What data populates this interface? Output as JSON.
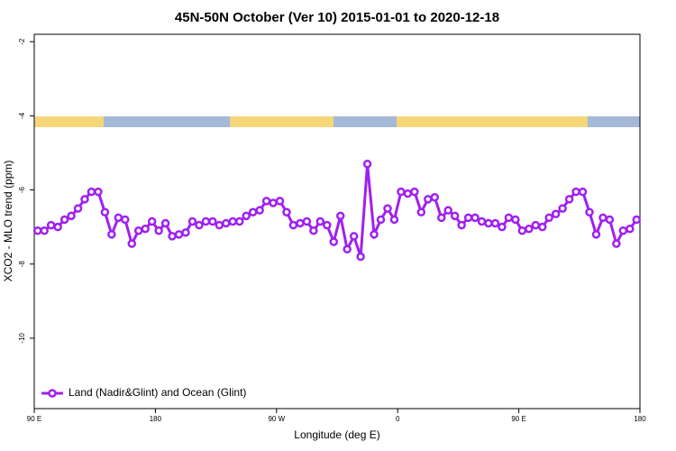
{
  "chart_data": {
    "type": "line",
    "title": "45N-50N October (Ver 10)   2015-01-01 to 2020-12-18",
    "x_label": "Longitude (deg E)",
    "y_label": "XCO2 - MLO trend (ppm)",
    "xlim": [
      90,
      540
    ],
    "xticks": [
      {
        "value": 90,
        "label": "90 E"
      },
      180,
      {
        "value": 270,
        "label": "90 W"
      },
      {
        "value": 360,
        "label": "0"
      },
      {
        "value": 450,
        "label": "90 E"
      },
      {
        "value": 540,
        "label": "180"
      }
    ],
    "ylim": [
      -11.9,
      -1.8
    ],
    "yticks": [
      -2,
      -4,
      -6,
      -8,
      -10
    ],
    "legend": "bottom-left",
    "x": [
      92.5,
      97.5,
      102.5,
      107.5,
      112.5,
      117.5,
      122.5,
      127.5,
      132.5,
      137.5,
      142.5,
      147.5,
      152.5,
      157.5,
      162.5,
      167.5,
      172.5,
      177.5,
      182.5,
      187.5,
      192.5,
      197.5,
      202.5,
      207.5,
      212.5,
      217.5,
      222.5,
      227.5,
      232.5,
      237.5,
      242.5,
      247.5,
      252.5,
      257.5,
      262.5,
      267.5,
      272.5,
      277.5,
      282.5,
      287.5,
      292.5,
      297.5,
      302.5,
      307.5,
      312.5,
      317.5,
      322.5,
      327.5,
      332.5,
      337.5,
      342.5,
      347.5,
      352.5,
      357.5,
      362.5,
      367.5,
      372.5,
      377.5,
      382.5,
      387.5,
      392.5,
      397.5,
      402.5,
      407.5,
      412.5,
      417.5,
      422.5,
      427.5,
      432.5,
      437.5,
      442.5,
      447.5,
      452.5,
      457.5,
      462.5,
      467.5,
      472.5,
      477.5,
      482.5,
      487.5,
      492.5,
      497.5,
      502.5,
      507.5,
      512.5,
      517.5,
      522.5,
      527.5,
      532.5,
      537.5
    ],
    "series": [
      {
        "name": "Land (Nadir&Glint) and Ocean (Glint)",
        "color": "#a020f0",
        "values": [
          -7.1,
          -7.1,
          -6.95,
          -7.0,
          -6.8,
          -6.7,
          -6.5,
          -6.25,
          -6.05,
          -6.05,
          -6.6,
          -7.2,
          -6.75,
          -6.8,
          -7.45,
          -7.1,
          -7.05,
          -6.85,
          -7.1,
          -6.9,
          -7.25,
          -7.2,
          -7.15,
          -6.85,
          -6.95,
          -6.85,
          -6.85,
          -6.95,
          -6.9,
          -6.85,
          -6.85,
          -6.7,
          -6.6,
          -6.55,
          -6.3,
          -6.35,
          -6.3,
          -6.6,
          -6.95,
          -6.9,
          -6.85,
          -7.1,
          -6.85,
          -6.95,
          -7.4,
          -6.7,
          -7.6,
          -7.25,
          -7.8,
          -5.3,
          -7.2,
          -6.8,
          -6.5,
          -6.8,
          -6.05,
          -6.1,
          -6.05,
          -6.6,
          -6.25,
          -6.2,
          -6.75,
          -6.55,
          -6.7,
          -6.95,
          -6.75,
          -6.75,
          -6.85,
          -6.9,
          -6.9,
          -7.0,
          -6.75,
          -6.8,
          -7.1,
          -7.05,
          -6.95,
          -7.0,
          -6.75,
          -6.65,
          -6.5,
          -6.25,
          -6.05,
          -6.05,
          -6.6,
          -7.2,
          -6.75,
          -6.8,
          -7.45,
          -7.1,
          -7.05,
          -6.8
        ]
      }
    ]
  }
}
